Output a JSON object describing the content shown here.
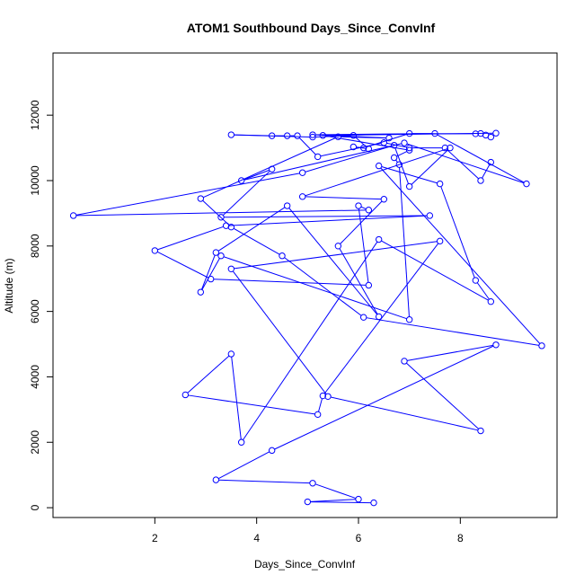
{
  "chart_data": {
    "type": "line",
    "title": "ATOM1 Southbound Days_Since_ConvInf",
    "xlabel": "Days_Since_ConvInf",
    "ylabel": "Altitude (m)",
    "xlim": [
      0.0,
      9.9
    ],
    "ylim": [
      -300,
      13900
    ],
    "xticks": [
      2,
      4,
      6,
      8
    ],
    "yticks": [
      0,
      2000,
      4000,
      6000,
      8000,
      10000,
      12000
    ],
    "grid": false,
    "color": "#0000ff",
    "marker": "open-circle",
    "x": [
      6.3,
      5.0,
      6.0,
      5.1,
      3.2,
      4.3,
      8.7,
      6.9,
      8.4,
      5.4,
      3.5,
      7.6,
      5.3,
      5.2,
      2.6,
      3.5,
      3.7,
      6.4,
      8.6,
      8.3,
      7.6,
      6.4,
      9.6,
      6.1,
      4.5,
      3.5,
      2.9,
      5.6,
      6.6,
      5.1,
      7.5,
      9.3,
      6.9,
      3.7,
      4.3,
      3.3,
      7.4,
      3.4,
      2.0,
      3.1,
      6.2,
      6.0,
      6.2,
      0.4,
      4.9,
      6.7,
      7.0,
      7.8,
      4.9,
      6.5,
      5.6,
      6.4,
      4.6,
      3.2,
      2.9,
      3.3,
      7.0,
      6.8,
      6.7,
      7.0,
      5.3,
      8.7,
      8.6,
      8.5,
      8.4,
      8.3,
      7.0,
      6.1,
      5.9,
      6.2,
      5.9,
      5.1,
      3.5,
      4.3,
      4.6,
      4.8,
      5.2,
      6.5,
      7.0,
      7.7,
      8.4,
      8.6
    ],
    "y": [
      150,
      180,
      260,
      750,
      850,
      1750,
      4980,
      4480,
      2350,
      3400,
      7300,
      8150,
      3420,
      2850,
      3450,
      4700,
      2000,
      8200,
      6300,
      6950,
      9900,
      10450,
      4950,
      5820,
      7700,
      8580,
      9450,
      11340,
      11300,
      11400,
      11440,
      9900,
      11150,
      10000,
      10350,
      8880,
      8930,
      8620,
      7860,
      6990,
      6800,
      9230,
      9100,
      8930,
      10240,
      11080,
      9820,
      11000,
      9510,
      9430,
      8000,
      5840,
      9230,
      7800,
      6590,
      7700,
      5750,
      10490,
      10700,
      10930,
      11380,
      11450,
      11330,
      11390,
      11440,
      11430,
      11440,
      11000,
      11030,
      10970,
      11380,
      11330,
      11400,
      11370,
      11370,
      11370,
      10730,
      11160,
      11000,
      11000,
      10000,
      10560
    ]
  },
  "icons": {
    "marker": "circle-marker-icon"
  }
}
